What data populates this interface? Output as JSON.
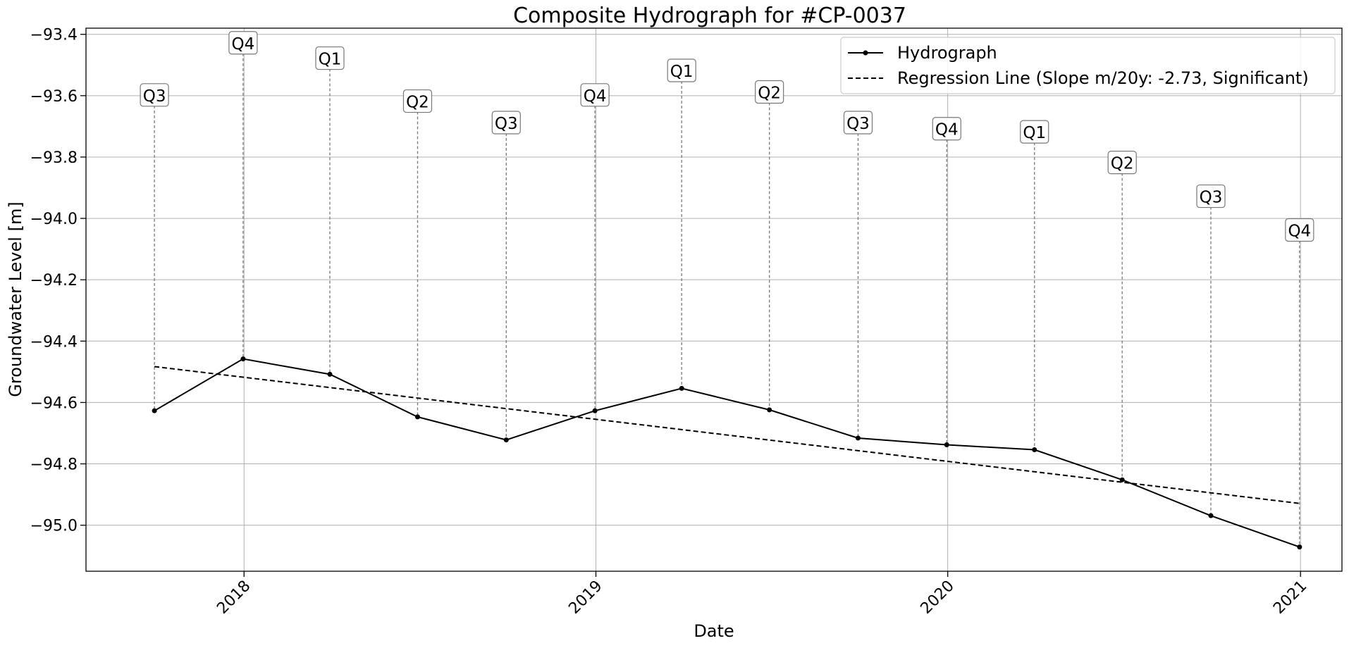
{
  "chart_data": {
    "type": "line",
    "title": "Composite Hydrograph for  #CP-0037",
    "xlabel": "Date",
    "ylabel": "Groundwater Level [m]",
    "xlim": [
      "2017-07-21",
      "2021-02-13"
    ],
    "ylim": [
      -95.15,
      -93.38
    ],
    "x_ticks": [
      "2018",
      "2019",
      "2020",
      "2021"
    ],
    "y_ticks": [
      -93.4,
      -93.6,
      -93.8,
      -94.0,
      -94.2,
      -94.4,
      -94.6,
      -94.8,
      -95.0
    ],
    "grid": true,
    "legend_position": "top-right",
    "series": [
      {
        "name": "Hydrograph",
        "style": "solid-with-dot-markers",
        "color": "#000000",
        "x": [
          "2017-09-30",
          "2017-12-31",
          "2018-03-31",
          "2018-06-30",
          "2018-09-30",
          "2018-12-31",
          "2019-03-31",
          "2019-06-30",
          "2019-09-30",
          "2019-12-31",
          "2020-03-31",
          "2020-06-30",
          "2020-09-30",
          "2020-12-31"
        ],
        "values": [
          -94.627,
          -94.458,
          -94.508,
          -94.647,
          -94.722,
          -94.627,
          -94.554,
          -94.624,
          -94.716,
          -94.738,
          -94.754,
          -94.852,
          -94.969,
          -95.071
        ]
      },
      {
        "name": "Regression Line (Slope m/20y: -2.73, Significant)",
        "style": "dashed",
        "color": "#000000",
        "x": [
          "2017-09-30",
          "2020-12-31"
        ],
        "values": [
          -94.483,
          -94.929
        ]
      }
    ],
    "quarter_annotations": [
      {
        "x": "2017-09-30",
        "label": "Q3",
        "y": -93.6
      },
      {
        "x": "2017-12-31",
        "label": "Q4",
        "y": -93.43
      },
      {
        "x": "2018-03-31",
        "label": "Q1",
        "y": -93.48
      },
      {
        "x": "2018-06-30",
        "label": "Q2",
        "y": -93.62
      },
      {
        "x": "2018-09-30",
        "label": "Q3",
        "y": -93.69
      },
      {
        "x": "2018-12-31",
        "label": "Q4",
        "y": -93.6
      },
      {
        "x": "2019-03-31",
        "label": "Q1",
        "y": -93.52
      },
      {
        "x": "2019-06-30",
        "label": "Q2",
        "y": -93.59
      },
      {
        "x": "2019-09-30",
        "label": "Q3",
        "y": -93.69
      },
      {
        "x": "2019-12-31",
        "label": "Q4",
        "y": -93.71
      },
      {
        "x": "2020-03-31",
        "label": "Q1",
        "y": -93.72
      },
      {
        "x": "2020-06-30",
        "label": "Q2",
        "y": -93.82
      },
      {
        "x": "2020-09-30",
        "label": "Q3",
        "y": -93.93
      },
      {
        "x": "2020-12-31",
        "label": "Q4",
        "y": -94.04
      }
    ]
  }
}
